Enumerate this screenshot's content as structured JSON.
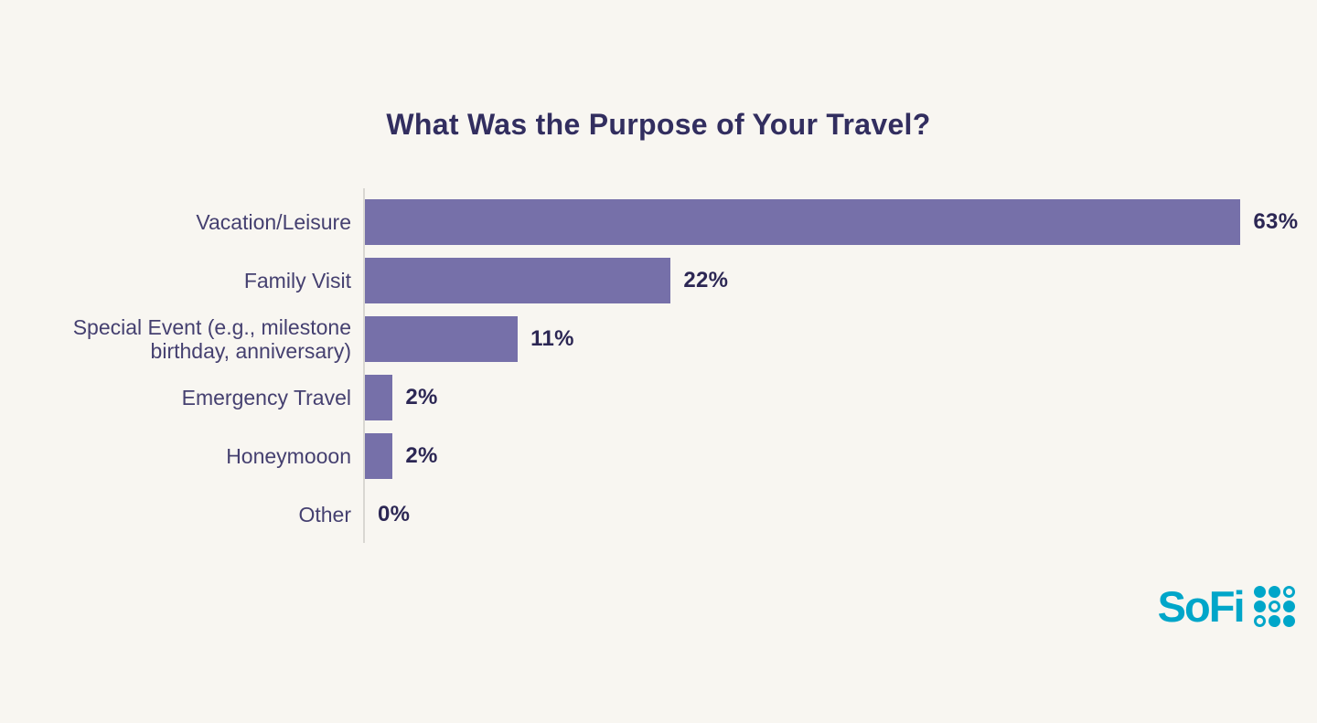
{
  "chart_data": {
    "type": "bar",
    "orientation": "horizontal",
    "title": "What Was the Purpose of Your Travel?",
    "categories": [
      "Vacation/Leisure",
      "Family Visit",
      "Special Event (e.g., milestone birthday, anniversary)",
      "Emergency Travel",
      "Honeymooon",
      "Other"
    ],
    "values": [
      63,
      22,
      11,
      2,
      2,
      0
    ],
    "value_labels": [
      "63%",
      "22%",
      "11%",
      "2%",
      "2%",
      "0%"
    ],
    "xlabel": "",
    "ylabel": "",
    "xlim": [
      0,
      66
    ],
    "grid": false,
    "legend": null,
    "bar_color": "#7670a9"
  },
  "branding": {
    "logo_text": "SoFi",
    "logo_color": "#00a6c9",
    "logo_dots": [
      "filled",
      "filled",
      "ring",
      "filled",
      "ring",
      "filled",
      "ring",
      "filled",
      "filled"
    ]
  },
  "colors": {
    "background": "#f8f6f1",
    "title": "#322e5f",
    "label": "#454070",
    "value": "#2c2754",
    "axis": "#d9d7d2"
  }
}
